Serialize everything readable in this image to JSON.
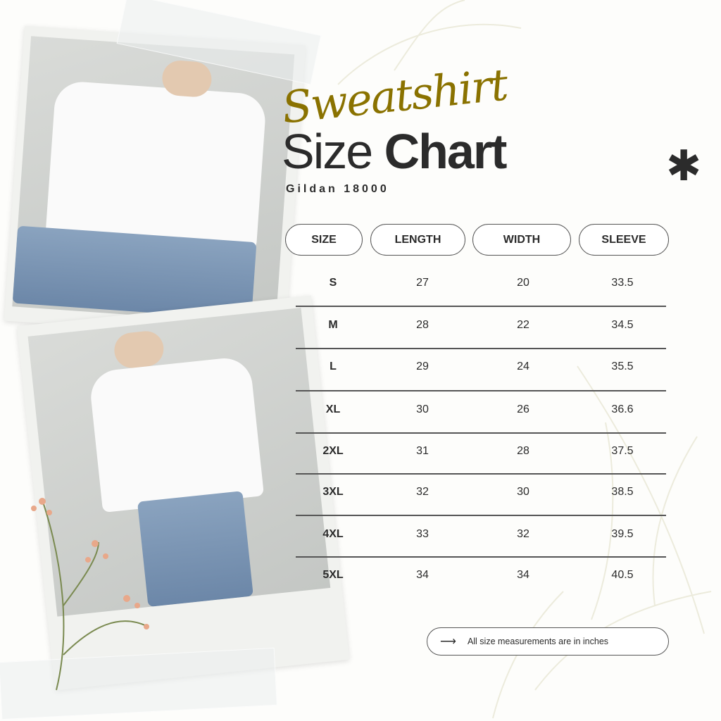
{
  "header": {
    "script_title": "Sweatshirt",
    "title_light": "Size",
    "title_bold": "Chart",
    "subtitle": "Gildan 18000",
    "decoration": "asterisk-icon"
  },
  "table": {
    "columns": [
      "SIZE",
      "LENGTH",
      "WIDTH",
      "SLEEVE"
    ],
    "rows": [
      [
        "S",
        "27",
        "20",
        "33.5"
      ],
      [
        "M",
        "28",
        "22",
        "34.5"
      ],
      [
        "L",
        "29",
        "24",
        "35.5"
      ],
      [
        "XL",
        "30",
        "26",
        "36.6"
      ],
      [
        "2XL",
        "31",
        "28",
        "37.5"
      ],
      [
        "3XL",
        "32",
        "30",
        "38.5"
      ],
      [
        "4XL",
        "33",
        "32",
        "39.5"
      ],
      [
        "5XL",
        "34",
        "34",
        "40.5"
      ]
    ]
  },
  "note": {
    "icon": "arrow-right-icon",
    "text": "All size measurements are in inches"
  },
  "colors": {
    "script_accent": "#8a7200",
    "text": "#2b2b2b",
    "background": "#fdfdfb"
  }
}
